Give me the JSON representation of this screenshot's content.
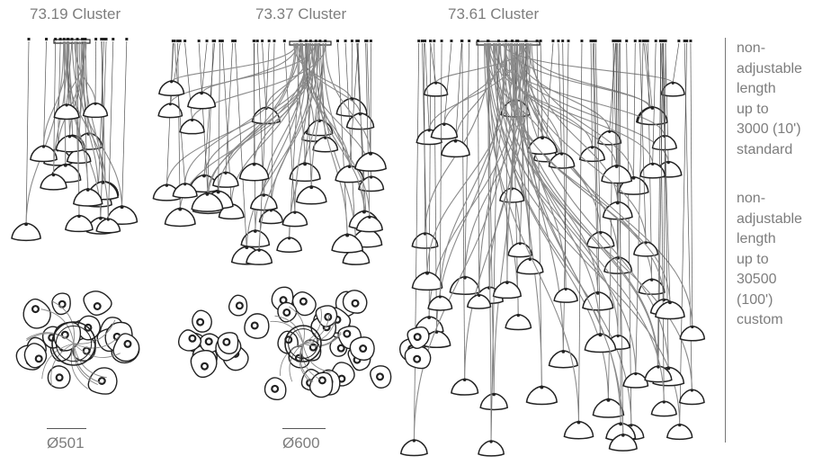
{
  "clusters": [
    {
      "title": "73.19 Cluster",
      "diameter": "Ø501"
    },
    {
      "title": "73.37 Cluster",
      "diameter": "Ø600"
    },
    {
      "title": "73.61 Cluster"
    }
  ],
  "notes": {
    "standard": [
      "non-",
      "adjustable",
      "length",
      "up to",
      "3000 (10')",
      "standard"
    ],
    "custom": [
      "non-",
      "adjustable",
      "length",
      "up to",
      "30500",
      "(100')",
      "custom"
    ]
  },
  "colors": {
    "text": "#7d7d7d",
    "line": "#222222",
    "cable": "#8a8a8a"
  }
}
